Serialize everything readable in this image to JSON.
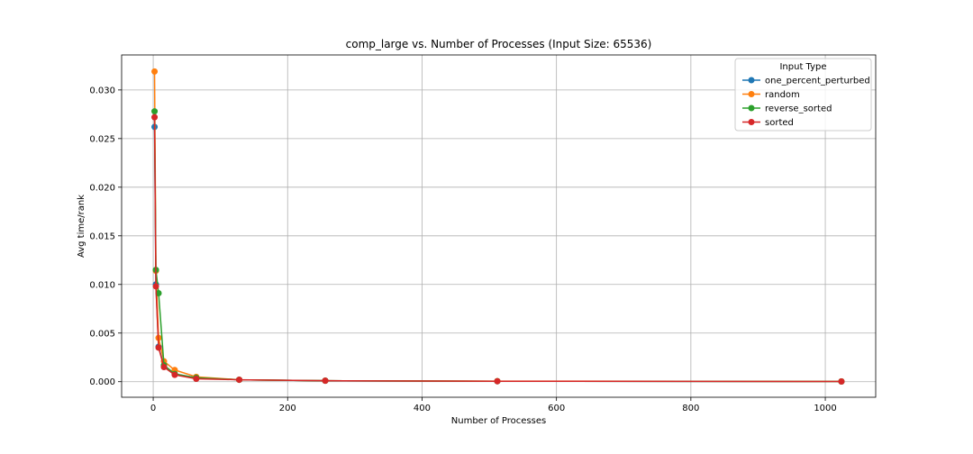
{
  "chart_data": {
    "type": "line",
    "title": "comp_large vs. Number of Processes (Input Size: 65536)",
    "xlabel": "Number of Processes",
    "ylabel": "Avg time/rank",
    "xlim": [
      -47,
      1075
    ],
    "ylim": [
      -0.0016,
      0.0336
    ],
    "xticks": [
      0,
      200,
      400,
      600,
      800,
      1000
    ],
    "yticks": [
      0.0,
      0.005,
      0.01,
      0.015,
      0.02,
      0.025,
      0.03
    ],
    "xtick_labels": [
      "0",
      "200",
      "400",
      "600",
      "800",
      "1000"
    ],
    "ytick_labels": [
      "0.000",
      "0.005",
      "0.010",
      "0.015",
      "0.020",
      "0.025",
      "0.030"
    ],
    "grid": true,
    "legend": {
      "title": "Input Type",
      "placement": "upper right"
    },
    "x": [
      2,
      4,
      8,
      16,
      32,
      64,
      128,
      256,
      512,
      1024
    ],
    "series": [
      {
        "name": "one_percent_perturbed",
        "color": "#1f77b4",
        "values": [
          0.0262,
          0.01,
          0.0036,
          0.0016,
          0.0008,
          0.0004,
          0.0002,
          0.0001,
          5e-05,
          2e-05
        ]
      },
      {
        "name": "random",
        "color": "#ff7f0e",
        "values": [
          0.0319,
          0.0114,
          0.0045,
          0.0021,
          0.0012,
          0.0005,
          0.0002,
          0.0001,
          6e-05,
          3e-05
        ]
      },
      {
        "name": "reverse_sorted",
        "color": "#2ca02c",
        "values": [
          0.0278,
          0.0115,
          0.0091,
          0.0017,
          0.0008,
          0.0004,
          0.0002,
          0.0001,
          5e-05,
          2e-05
        ]
      },
      {
        "name": "sorted",
        "color": "#d62728",
        "values": [
          0.0272,
          0.0098,
          0.0035,
          0.0015,
          0.0007,
          0.0003,
          0.0002,
          0.0001,
          5e-05,
          2e-05
        ]
      }
    ]
  }
}
